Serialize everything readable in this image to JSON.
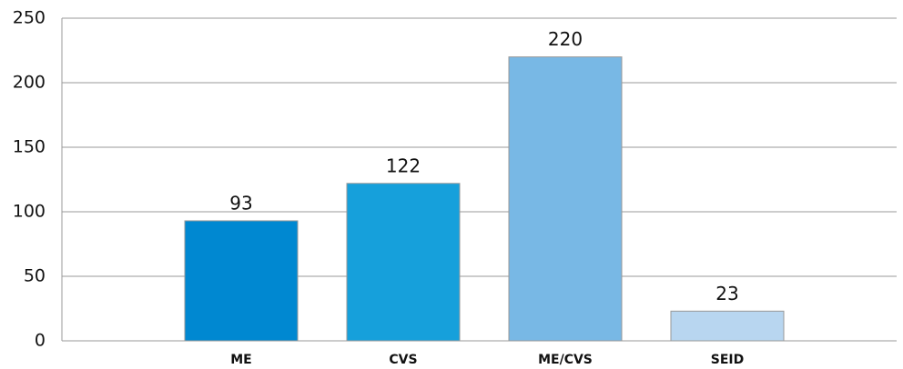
{
  "chart_data": {
    "type": "bar",
    "categories": [
      "ME",
      "CVS",
      "ME/CVS",
      "SEID"
    ],
    "values": [
      93,
      122,
      220,
      23
    ],
    "colors": [
      "#0088d1",
      "#16a0db",
      "#78b8e5",
      "#b8d6f0"
    ],
    "ylim": [
      0,
      250
    ],
    "yticks": [
      0,
      50,
      100,
      150,
      200,
      250
    ],
    "grid": true
  }
}
